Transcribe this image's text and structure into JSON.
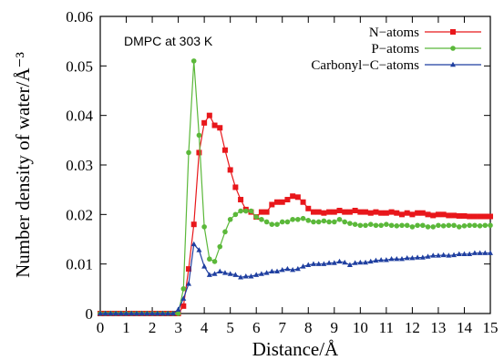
{
  "chart_data": {
    "type": "line",
    "title": "",
    "xlabel": "Distance/Å",
    "ylabel": "Number density of water/Å⁻³",
    "xlim": [
      0,
      15
    ],
    "ylim": [
      0,
      0.06
    ],
    "xticks": [
      0,
      1,
      2,
      3,
      4,
      5,
      6,
      7,
      8,
      9,
      10,
      11,
      12,
      13,
      14,
      15
    ],
    "xtick_labels": [
      "0",
      "1",
      "2",
      "3",
      "4",
      "5",
      "6",
      "7",
      "8",
      "9",
      "10",
      "11",
      "12",
      "13",
      "14",
      "15"
    ],
    "yticks": [
      0,
      0.01,
      0.02,
      0.03,
      0.04,
      0.05,
      0.06
    ],
    "ytick_labels": [
      "0",
      "0.01",
      "0.02",
      "0.03",
      "0.04",
      "0.05",
      "0.06"
    ],
    "grid": false,
    "legend_position": "top-right",
    "annotation": "DMPC at 303 K",
    "series": [
      {
        "name": "N−atoms",
        "color": "#e8171b",
        "marker": "square",
        "points": [
          [
            0,
            0
          ],
          [
            0.2,
            0
          ],
          [
            0.4,
            0
          ],
          [
            0.6,
            0
          ],
          [
            0.8,
            0
          ],
          [
            1,
            0
          ],
          [
            1.2,
            0
          ],
          [
            1.4,
            0
          ],
          [
            1.6,
            0
          ],
          [
            1.8,
            0
          ],
          [
            2,
            0
          ],
          [
            2.2,
            0
          ],
          [
            2.4,
            0
          ],
          [
            2.6,
            0
          ],
          [
            2.8,
            0
          ],
          [
            3,
            0
          ],
          [
            3.2,
            0.0015
          ],
          [
            3.4,
            0.009
          ],
          [
            3.6,
            0.018
          ],
          [
            3.8,
            0.0325
          ],
          [
            4,
            0.0385
          ],
          [
            4.2,
            0.04
          ],
          [
            4.4,
            0.038
          ],
          [
            4.6,
            0.0375
          ],
          [
            4.8,
            0.033
          ],
          [
            5,
            0.029
          ],
          [
            5.2,
            0.0255
          ],
          [
            5.4,
            0.023
          ],
          [
            5.6,
            0.021
          ],
          [
            5.8,
            0.0205
          ],
          [
            6,
            0.0195
          ],
          [
            6.2,
            0.0205
          ],
          [
            6.4,
            0.0205
          ],
          [
            6.6,
            0.022
          ],
          [
            6.8,
            0.0225
          ],
          [
            7,
            0.0225
          ],
          [
            7.2,
            0.023
          ],
          [
            7.4,
            0.0237
          ],
          [
            7.6,
            0.0235
          ],
          [
            7.8,
            0.0225
          ],
          [
            8,
            0.0212
          ],
          [
            8.2,
            0.0205
          ],
          [
            8.4,
            0.0205
          ],
          [
            8.6,
            0.0203
          ],
          [
            8.8,
            0.0205
          ],
          [
            9,
            0.0205
          ],
          [
            9.2,
            0.0208
          ],
          [
            9.4,
            0.0205
          ],
          [
            9.6,
            0.0205
          ],
          [
            9.8,
            0.0208
          ],
          [
            10,
            0.0205
          ],
          [
            10.2,
            0.0205
          ],
          [
            10.4,
            0.0203
          ],
          [
            10.6,
            0.0205
          ],
          [
            10.8,
            0.0203
          ],
          [
            11,
            0.0203
          ],
          [
            11.2,
            0.0205
          ],
          [
            11.4,
            0.0203
          ],
          [
            11.6,
            0.02
          ],
          [
            11.8,
            0.0203
          ],
          [
            12,
            0.02
          ],
          [
            12.2,
            0.0203
          ],
          [
            12.4,
            0.0203
          ],
          [
            12.6,
            0.02
          ],
          [
            12.8,
            0.0198
          ],
          [
            13,
            0.02
          ],
          [
            13.2,
            0.02
          ],
          [
            13.4,
            0.0198
          ],
          [
            13.6,
            0.0198
          ],
          [
            13.8,
            0.0197
          ],
          [
            14,
            0.0197
          ],
          [
            14.2,
            0.0196
          ],
          [
            14.4,
            0.0196
          ],
          [
            14.6,
            0.0196
          ],
          [
            14.8,
            0.0196
          ],
          [
            15,
            0.0196
          ]
        ]
      },
      {
        "name": "P−atoms",
        "color": "#5bb83a",
        "marker": "circle",
        "points": [
          [
            0,
            0
          ],
          [
            0.2,
            0
          ],
          [
            0.4,
            0
          ],
          [
            0.6,
            0
          ],
          [
            0.8,
            0
          ],
          [
            1,
            0
          ],
          [
            1.2,
            0
          ],
          [
            1.4,
            0
          ],
          [
            1.6,
            0
          ],
          [
            1.8,
            0
          ],
          [
            2,
            0
          ],
          [
            2.2,
            0
          ],
          [
            2.4,
            0
          ],
          [
            2.6,
            0
          ],
          [
            2.8,
            0
          ],
          [
            3,
            0
          ],
          [
            3.2,
            0.005
          ],
          [
            3.4,
            0.0325
          ],
          [
            3.6,
            0.051
          ],
          [
            3.8,
            0.036
          ],
          [
            4,
            0.0175
          ],
          [
            4.2,
            0.011
          ],
          [
            4.4,
            0.0105
          ],
          [
            4.6,
            0.0135
          ],
          [
            4.8,
            0.0165
          ],
          [
            5,
            0.019
          ],
          [
            5.2,
            0.02
          ],
          [
            5.4,
            0.0207
          ],
          [
            5.6,
            0.0207
          ],
          [
            5.8,
            0.0207
          ],
          [
            6,
            0.0195
          ],
          [
            6.2,
            0.019
          ],
          [
            6.4,
            0.0185
          ],
          [
            6.6,
            0.018
          ],
          [
            6.8,
            0.018
          ],
          [
            7,
            0.0185
          ],
          [
            7.2,
            0.0185
          ],
          [
            7.4,
            0.019
          ],
          [
            7.6,
            0.019
          ],
          [
            7.8,
            0.0192
          ],
          [
            8,
            0.0188
          ],
          [
            8.2,
            0.0185
          ],
          [
            8.4,
            0.0185
          ],
          [
            8.6,
            0.0187
          ],
          [
            8.8,
            0.0185
          ],
          [
            9,
            0.0185
          ],
          [
            9.2,
            0.019
          ],
          [
            9.4,
            0.0185
          ],
          [
            9.6,
            0.0182
          ],
          [
            9.8,
            0.018
          ],
          [
            10,
            0.0178
          ],
          [
            10.2,
            0.0178
          ],
          [
            10.4,
            0.018
          ],
          [
            10.6,
            0.0178
          ],
          [
            10.8,
            0.0178
          ],
          [
            11,
            0.018
          ],
          [
            11.2,
            0.0178
          ],
          [
            11.4,
            0.0177
          ],
          [
            11.6,
            0.0178
          ],
          [
            11.8,
            0.0178
          ],
          [
            12,
            0.0175
          ],
          [
            12.2,
            0.0178
          ],
          [
            12.4,
            0.0178
          ],
          [
            12.6,
            0.0175
          ],
          [
            12.8,
            0.0175
          ],
          [
            13,
            0.0178
          ],
          [
            13.2,
            0.0177
          ],
          [
            13.4,
            0.0178
          ],
          [
            13.6,
            0.0178
          ],
          [
            13.8,
            0.0175
          ],
          [
            14,
            0.0177
          ],
          [
            14.2,
            0.0178
          ],
          [
            14.4,
            0.0178
          ],
          [
            14.6,
            0.0177
          ],
          [
            14.8,
            0.0178
          ],
          [
            15,
            0.0178
          ]
        ]
      },
      {
        "name": "Carbonyl−C−atoms",
        "color": "#1f3fa0",
        "marker": "triangle",
        "points": [
          [
            0,
            0
          ],
          [
            0.2,
            0
          ],
          [
            0.4,
            0
          ],
          [
            0.6,
            0
          ],
          [
            0.8,
            0
          ],
          [
            1,
            0
          ],
          [
            1.2,
            0
          ],
          [
            1.4,
            0
          ],
          [
            1.6,
            0
          ],
          [
            1.8,
            0
          ],
          [
            2,
            0
          ],
          [
            2.2,
            0
          ],
          [
            2.4,
            0
          ],
          [
            2.6,
            0
          ],
          [
            2.8,
            0
          ],
          [
            3,
            0.0008
          ],
          [
            3.2,
            0.003
          ],
          [
            3.4,
            0.006
          ],
          [
            3.6,
            0.014
          ],
          [
            3.8,
            0.0128
          ],
          [
            4,
            0.0095
          ],
          [
            4.2,
            0.0078
          ],
          [
            4.4,
            0.008
          ],
          [
            4.6,
            0.0085
          ],
          [
            4.8,
            0.0082
          ],
          [
            5,
            0.008
          ],
          [
            5.2,
            0.0078
          ],
          [
            5.4,
            0.0073
          ],
          [
            5.6,
            0.0075
          ],
          [
            5.8,
            0.0075
          ],
          [
            6,
            0.0078
          ],
          [
            6.2,
            0.008
          ],
          [
            6.4,
            0.0082
          ],
          [
            6.6,
            0.0085
          ],
          [
            6.8,
            0.0085
          ],
          [
            7,
            0.0088
          ],
          [
            7.2,
            0.009
          ],
          [
            7.4,
            0.0088
          ],
          [
            7.6,
            0.009
          ],
          [
            7.8,
            0.0095
          ],
          [
            8,
            0.0098
          ],
          [
            8.2,
            0.01
          ],
          [
            8.4,
            0.01
          ],
          [
            8.6,
            0.01
          ],
          [
            8.8,
            0.0102
          ],
          [
            9,
            0.0102
          ],
          [
            9.2,
            0.0105
          ],
          [
            9.4,
            0.0103
          ],
          [
            9.6,
            0.0098
          ],
          [
            9.8,
            0.0102
          ],
          [
            10,
            0.0103
          ],
          [
            10.2,
            0.0103
          ],
          [
            10.4,
            0.0105
          ],
          [
            10.6,
            0.0107
          ],
          [
            10.8,
            0.0108
          ],
          [
            11,
            0.0108
          ],
          [
            11.2,
            0.011
          ],
          [
            11.4,
            0.011
          ],
          [
            11.6,
            0.011
          ],
          [
            11.8,
            0.0112
          ],
          [
            12,
            0.0112
          ],
          [
            12.2,
            0.0113
          ],
          [
            12.4,
            0.0113
          ],
          [
            12.6,
            0.0115
          ],
          [
            12.8,
            0.0117
          ],
          [
            13,
            0.0117
          ],
          [
            13.2,
            0.0118
          ],
          [
            13.4,
            0.0117
          ],
          [
            13.6,
            0.0118
          ],
          [
            13.8,
            0.012
          ],
          [
            14,
            0.012
          ],
          [
            14.2,
            0.012
          ],
          [
            14.4,
            0.0122
          ],
          [
            14.6,
            0.0122
          ],
          [
            14.8,
            0.0122
          ],
          [
            15,
            0.0122
          ]
        ]
      }
    ]
  }
}
